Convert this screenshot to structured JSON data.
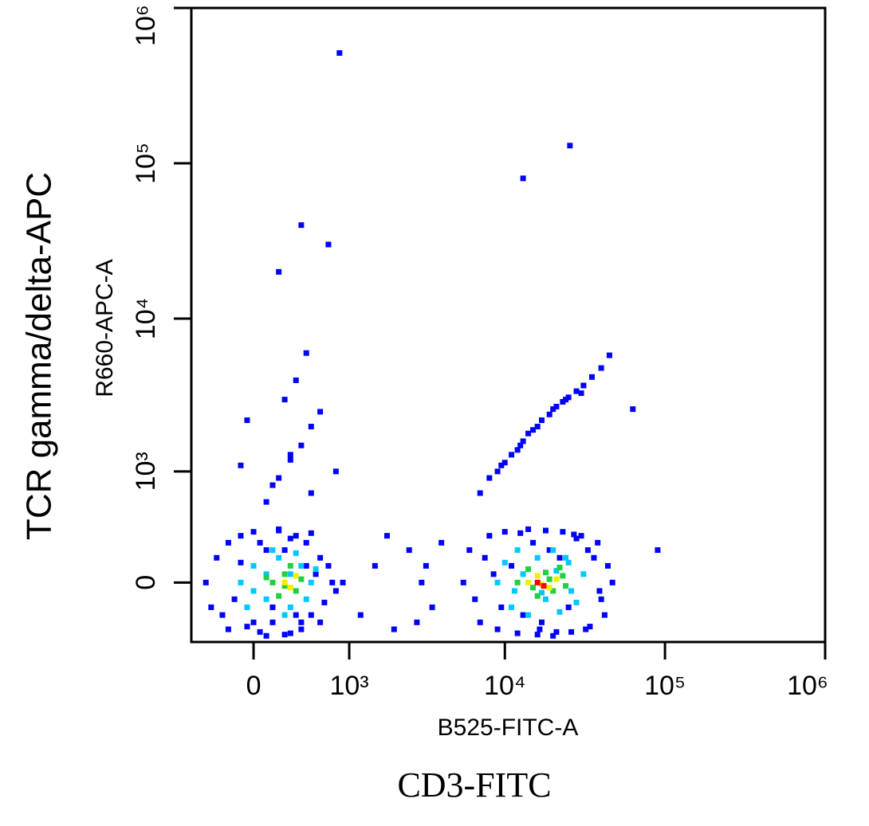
{
  "chart_data": {
    "type": "scatter",
    "xscale": "biexponential",
    "yscale": "biexponential",
    "xlabel": "B525-FITC-A",
    "ylabel": "R660-APC-A",
    "outer_xlabel": "CD3-FITC",
    "outer_ylabel": "TCR gamma/delta-APC",
    "xlim": [
      -550,
      1000000
    ],
    "ylim": [
      -400,
      1000000
    ],
    "xticks": [
      0,
      {
        "value": 1000,
        "label": "10³"
      },
      {
        "value": 10000,
        "label": "10⁴"
      },
      {
        "value": 100000,
        "label": "10⁵"
      },
      {
        "value": 1000000,
        "label": "10⁶"
      }
    ],
    "yticks": [
      0,
      {
        "value": 1000,
        "label": "10³"
      },
      {
        "value": 10000,
        "label": "10⁴"
      },
      {
        "value": 100000,
        "label": "10⁵"
      },
      {
        "value": 1000000,
        "label": "10⁶"
      }
    ],
    "series": [
      {
        "color": "#0000ff",
        "x": [
          -400,
          -300,
          -250,
          -200,
          -150,
          -100,
          -50,
          0,
          50,
          100,
          150,
          200,
          250,
          300,
          350,
          400,
          450,
          500,
          600,
          700,
          800,
          900,
          -350,
          -200,
          0,
          100,
          200,
          300,
          400,
          500,
          600,
          750,
          -100,
          50,
          150,
          250,
          350,
          450,
          550,
          650,
          5500,
          6000,
          7000,
          8000,
          9000,
          10000,
          12000,
          14000,
          16000,
          18000,
          20000,
          23000,
          26000,
          30000,
          34000,
          38000,
          42000,
          47000,
          6500,
          7500,
          9500,
          11000,
          13000,
          15000,
          17000,
          19000,
          22000,
          25000,
          28000,
          32000,
          36000,
          40000,
          44000,
          8500,
          12500,
          16500,
          21000,
          27000,
          33000,
          39000,
          1200,
          1500,
          2000,
          2500,
          3000,
          3500,
          4000,
          1800,
          2800,
          3200,
          7000,
          8000,
          9000,
          10000,
          11000,
          12000,
          13000,
          14000,
          15000,
          17000,
          19000,
          21000,
          23000,
          25000,
          28000,
          31000,
          35000,
          40000,
          45000,
          9500,
          12500,
          16000,
          20000,
          24000,
          30000,
          100,
          200,
          300,
          400,
          500,
          600,
          250,
          350,
          450,
          150,
          300,
          500,
          -100,
          -50,
          200,
          400,
          700,
          800,
          850,
          25500,
          13000,
          63000,
          90000
        ],
        "y": [
          0,
          150,
          -200,
          250,
          -100,
          300,
          -280,
          330,
          -320,
          200,
          -250,
          340,
          -340,
          280,
          300,
          -300,
          250,
          -200,
          150,
          100,
          -50,
          0,
          -150,
          -300,
          -250,
          -350,
          350,
          -330,
          -250,
          320,
          -250,
          0,
          120,
          250,
          -150,
          200,
          -200,
          100,
          50,
          -120,
          0,
          200,
          -250,
          300,
          -300,
          330,
          -330,
          350,
          -340,
          340,
          -350,
          330,
          -320,
          300,
          -280,
          250,
          -200,
          0,
          -100,
          150,
          -150,
          100,
          -200,
          250,
          -250,
          200,
          150,
          -150,
          280,
          -300,
          150,
          -100,
          100,
          50,
          320,
          -300,
          -320,
          310,
          200,
          -50,
          -200,
          100,
          -300,
          200,
          0,
          -150,
          250,
          300,
          -250,
          100,
          700,
          900,
          1000,
          1150,
          1300,
          1400,
          1600,
          1800,
          1900,
          2200,
          2400,
          2700,
          2900,
          3100,
          3400,
          3700,
          4200,
          4800,
          5800,
          1100,
          1500,
          2000,
          2600,
          3000,
          3300,
          600,
          900,
          1200,
          1500,
          2000,
          2500,
          3000,
          4000,
          6000,
          800,
          1300,
          700,
          1100,
          2200,
          20000,
          40000,
          30000,
          1000,
          513000,
          130000,
          80000,
          2600,
          200
        ]
      },
      {
        "color": "#00c8ff",
        "x": [
          -100,
          0,
          100,
          200,
          300,
          400,
          500,
          0,
          150,
          300,
          450,
          -50,
          250,
          350,
          100,
          550,
          9000,
          10000,
          11000,
          12000,
          14000,
          16000,
          18000,
          20000,
          22000,
          25000,
          28000,
          31000,
          13000,
          17000,
          21000,
          26000,
          11500,
          24000
        ],
        "y": [
          0,
          100,
          -100,
          150,
          -150,
          100,
          0,
          -50,
          200,
          50,
          -100,
          -150,
          -200,
          180,
          50,
          80,
          0,
          120,
          -150,
          200,
          -200,
          150,
          -100,
          200,
          -180,
          120,
          -120,
          50,
          50,
          -60,
          70,
          -50,
          -50,
          150
        ]
      },
      {
        "color": "#20d040",
        "x": [
          150,
          250,
          350,
          200,
          300,
          400,
          100,
          250,
          12000,
          14000,
          16000,
          18000,
          20000,
          22000,
          24000,
          15000,
          19000,
          23000
        ],
        "y": [
          0,
          50,
          -50,
          -80,
          100,
          20,
          30,
          -20,
          0,
          80,
          -80,
          60,
          -50,
          90,
          -20,
          -30,
          20,
          40
        ]
      },
      {
        "color": "#f0f000",
        "x": [
          250,
          300,
          350,
          14000,
          16000,
          19000,
          21000,
          17000
        ],
        "y": [
          0,
          -30,
          40,
          0,
          40,
          -30,
          20,
          -10
        ]
      },
      {
        "color": "#ff0000",
        "x": [
          16000,
          17500
        ],
        "y": [
          0,
          -20
        ]
      }
    ]
  }
}
